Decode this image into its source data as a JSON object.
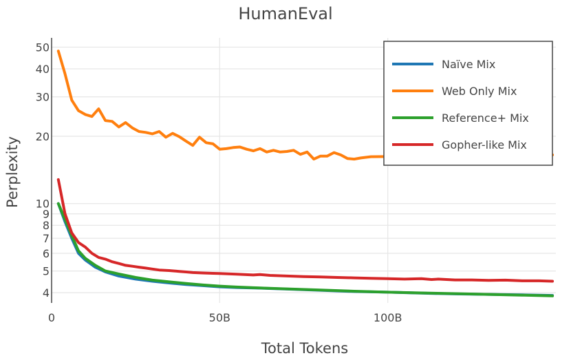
{
  "chart_data": {
    "type": "line",
    "title": "HumanEval",
    "xlabel": "Total Tokens",
    "ylabel": "Perplexity",
    "x_unit": "billion tokens",
    "xlim": [
      0,
      150
    ],
    "ylim": [
      3.6,
      55
    ],
    "y_scale": "log",
    "grid": true,
    "legend_position": "top-right",
    "x_ticks": [
      {
        "value": 0,
        "label": "0"
      },
      {
        "value": 50,
        "label": "50B"
      },
      {
        "value": 100,
        "label": "100B"
      }
    ],
    "y_ticks": [
      {
        "value": 4,
        "label": "4"
      },
      {
        "value": 5,
        "label": "5"
      },
      {
        "value": 6,
        "label": "6"
      },
      {
        "value": 7,
        "label": "7"
      },
      {
        "value": 8,
        "label": "8"
      },
      {
        "value": 9,
        "label": "9"
      },
      {
        "value": 10,
        "label": "10"
      },
      {
        "value": 20,
        "label": "20"
      },
      {
        "value": 30,
        "label": "30"
      },
      {
        "value": 40,
        "label": "40"
      },
      {
        "value": 50,
        "label": "50"
      }
    ],
    "series": [
      {
        "name": "Naïve Mix",
        "color": "#1f77b4",
        "points": [
          [
            2,
            10.0
          ],
          [
            4,
            8.3
          ],
          [
            6,
            7.0
          ],
          [
            8,
            6.0
          ],
          [
            10,
            5.6
          ],
          [
            13,
            5.2
          ],
          [
            16,
            4.95
          ],
          [
            20,
            4.75
          ],
          [
            25,
            4.6
          ],
          [
            30,
            4.5
          ],
          [
            35,
            4.42
          ],
          [
            40,
            4.35
          ],
          [
            45,
            4.3
          ],
          [
            50,
            4.25
          ],
          [
            55,
            4.22
          ],
          [
            60,
            4.2
          ],
          [
            70,
            4.15
          ],
          [
            80,
            4.1
          ],
          [
            90,
            4.05
          ],
          [
            100,
            4.02
          ],
          [
            110,
            3.98
          ],
          [
            120,
            3.95
          ],
          [
            130,
            3.93
          ],
          [
            140,
            3.91
          ],
          [
            149,
            3.89
          ]
        ]
      },
      {
        "name": "Web Only Mix",
        "color": "#ff7f0e",
        "points": [
          [
            2,
            48
          ],
          [
            4,
            38
          ],
          [
            6,
            29
          ],
          [
            8,
            26
          ],
          [
            10,
            25
          ],
          [
            12,
            24.5
          ],
          [
            14,
            26.5
          ],
          [
            16,
            23.5
          ],
          [
            18,
            23.3
          ],
          [
            20,
            22
          ],
          [
            22,
            23
          ],
          [
            24,
            21.8
          ],
          [
            26,
            21
          ],
          [
            28,
            20.8
          ],
          [
            30,
            20.5
          ],
          [
            32,
            21
          ],
          [
            34,
            19.8
          ],
          [
            36,
            20.6
          ],
          [
            38,
            19.9
          ],
          [
            40,
            19
          ],
          [
            42,
            18.2
          ],
          [
            44,
            19.8
          ],
          [
            46,
            18.7
          ],
          [
            48,
            18.5
          ],
          [
            50,
            17.5
          ],
          [
            52,
            17.6
          ],
          [
            54,
            17.8
          ],
          [
            56,
            17.9
          ],
          [
            58,
            17.5
          ],
          [
            60,
            17.2
          ],
          [
            62,
            17.6
          ],
          [
            64,
            17.0
          ],
          [
            66,
            17.3
          ],
          [
            68,
            17.0
          ],
          [
            70,
            17.1
          ],
          [
            72,
            17.3
          ],
          [
            74,
            16.6
          ],
          [
            76,
            17.0
          ],
          [
            78,
            15.8
          ],
          [
            80,
            16.3
          ],
          [
            82,
            16.3
          ],
          [
            84,
            16.9
          ],
          [
            86,
            16.5
          ],
          [
            88,
            15.9
          ],
          [
            90,
            15.8
          ],
          [
            92,
            16.0
          ],
          [
            95,
            16.2
          ],
          [
            149,
            16.5
          ]
        ]
      },
      {
        "name": "Reference+ Mix",
        "color": "#2ca02c",
        "points": [
          [
            2,
            10.0
          ],
          [
            4,
            8.5
          ],
          [
            6,
            7.2
          ],
          [
            8,
            6.15
          ],
          [
            10,
            5.7
          ],
          [
            13,
            5.3
          ],
          [
            16,
            5.0
          ],
          [
            20,
            4.85
          ],
          [
            25,
            4.68
          ],
          [
            30,
            4.55
          ],
          [
            35,
            4.47
          ],
          [
            40,
            4.4
          ],
          [
            45,
            4.33
          ],
          [
            50,
            4.28
          ],
          [
            55,
            4.24
          ],
          [
            60,
            4.21
          ],
          [
            70,
            4.16
          ],
          [
            80,
            4.11
          ],
          [
            90,
            4.06
          ],
          [
            100,
            4.02
          ],
          [
            110,
            3.99
          ],
          [
            120,
            3.96
          ],
          [
            130,
            3.93
          ],
          [
            140,
            3.9
          ],
          [
            149,
            3.87
          ]
        ]
      },
      {
        "name": "Gopher-like Mix",
        "color": "#d62728",
        "points": [
          [
            2,
            12.8
          ],
          [
            4,
            9.0
          ],
          [
            6,
            7.4
          ],
          [
            8,
            6.7
          ],
          [
            10,
            6.4
          ],
          [
            12,
            6.0
          ],
          [
            14,
            5.75
          ],
          [
            16,
            5.65
          ],
          [
            18,
            5.5
          ],
          [
            20,
            5.4
          ],
          [
            22,
            5.3
          ],
          [
            24,
            5.25
          ],
          [
            26,
            5.2
          ],
          [
            28,
            5.15
          ],
          [
            30,
            5.1
          ],
          [
            32,
            5.05
          ],
          [
            35,
            5.02
          ],
          [
            38,
            4.98
          ],
          [
            40,
            4.95
          ],
          [
            42,
            4.92
          ],
          [
            45,
            4.9
          ],
          [
            48,
            4.88
          ],
          [
            50,
            4.87
          ],
          [
            55,
            4.84
          ],
          [
            60,
            4.8
          ],
          [
            62,
            4.82
          ],
          [
            65,
            4.78
          ],
          [
            70,
            4.75
          ],
          [
            75,
            4.72
          ],
          [
            80,
            4.7
          ],
          [
            85,
            4.68
          ],
          [
            90,
            4.66
          ],
          [
            95,
            4.64
          ],
          [
            100,
            4.62
          ],
          [
            105,
            4.6
          ],
          [
            110,
            4.62
          ],
          [
            113,
            4.58
          ],
          [
            115,
            4.6
          ],
          [
            120,
            4.56
          ],
          [
            125,
            4.56
          ],
          [
            130,
            4.54
          ],
          [
            135,
            4.55
          ],
          [
            140,
            4.52
          ],
          [
            145,
            4.52
          ],
          [
            149,
            4.5
          ]
        ]
      }
    ]
  }
}
